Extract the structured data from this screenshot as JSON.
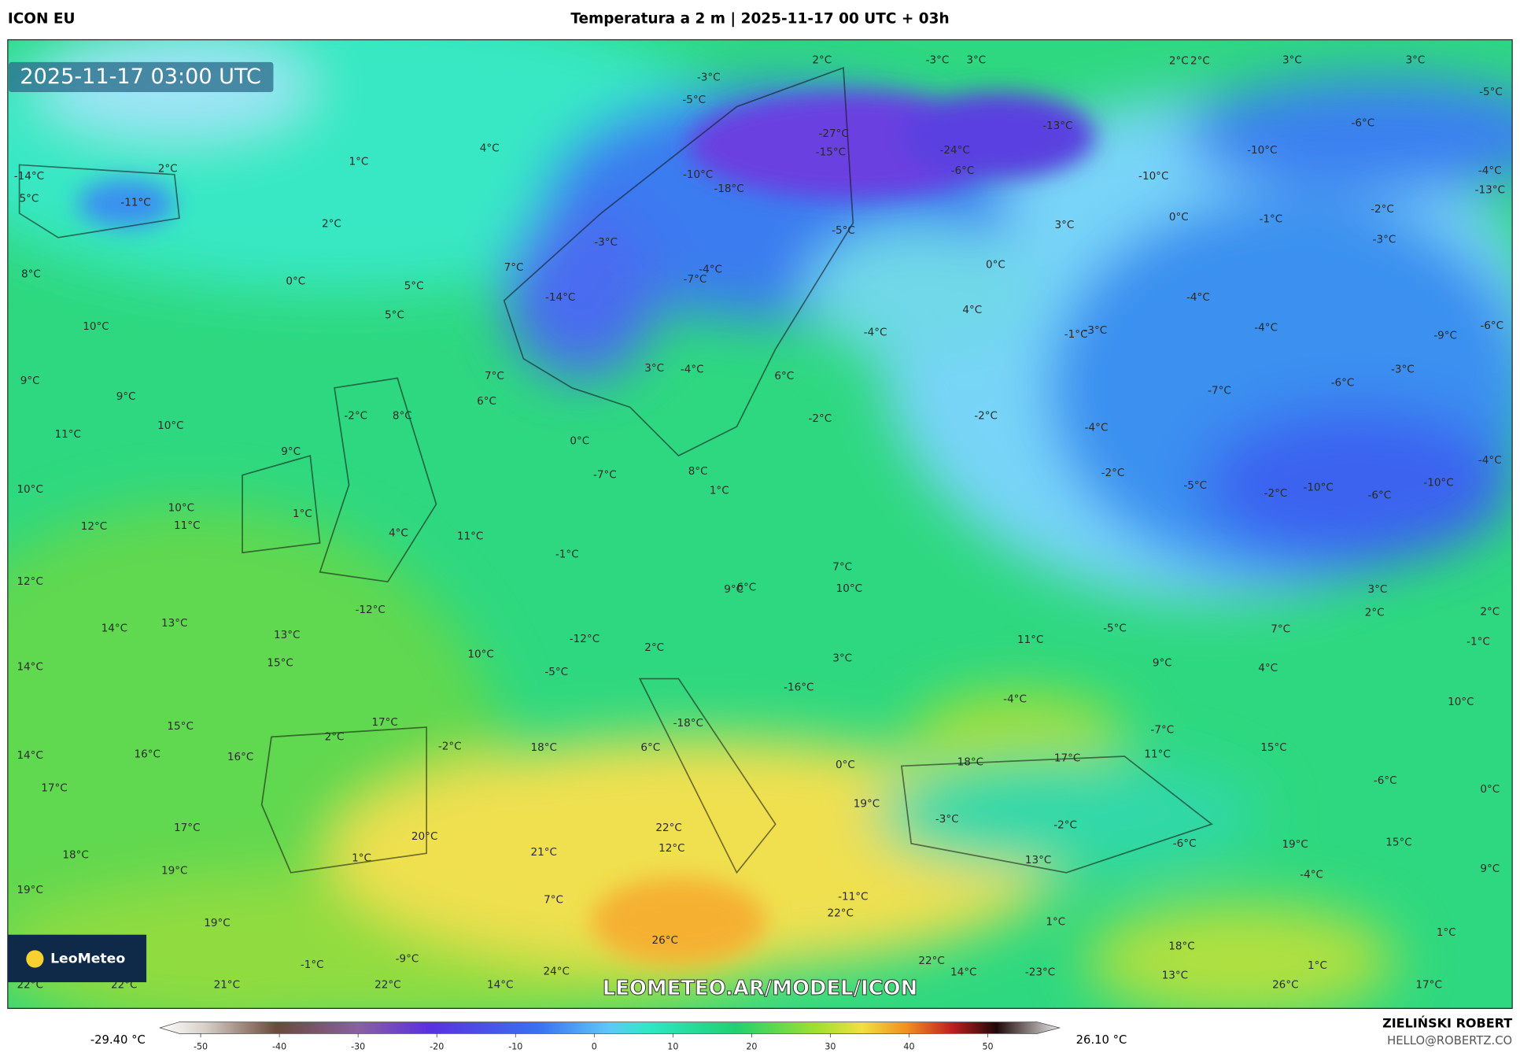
{
  "header": {
    "model": "ICON EU",
    "title": "Temperatura a 2 m | 2025-11-17 00 UTC + 03h"
  },
  "map": {
    "timestamp": "2025-11-17 03:00 UTC",
    "logo": "LeoMeteo",
    "watermark": "LEOMETEO.AR/MODEL/ICON",
    "labels": [
      "2°C",
      "-3°C",
      "3°C",
      "2°C",
      "2°C",
      "3°C",
      "3°C",
      "-5°C",
      "-3°C",
      "-5°C",
      "-27°C",
      "-15°C",
      "-13°C",
      "-24°C",
      "-6°C",
      "-6°C",
      "-10°C",
      "-10°C",
      "-4°C",
      "-13°C",
      "-10°C",
      "-18°C",
      "-11°C",
      "-14°C",
      "2°C",
      "5°C",
      "1°C",
      "4°C",
      "2°C",
      "-5°C",
      "3°C",
      "0°C",
      "-1°C",
      "-2°C",
      "-3°C",
      "-3°C",
      "7°C",
      "-4°C",
      "-7°C",
      "0°C",
      "8°C",
      "0°C",
      "5°C",
      "-14°C",
      "-4°C",
      "5°C",
      "4°C",
      "-4°C",
      "-6°C",
      "10°C",
      "-1°C",
      "-3°C",
      "-4°C",
      "-9°C",
      "-3°C",
      "3°C",
      "-4°C",
      "6°C",
      "7°C",
      "-6°C",
      "9°C",
      "-7°C",
      "9°C",
      "6°C",
      "-2°C",
      "8°C",
      "-2°C",
      "-2°C",
      "-4°C",
      "10°C",
      "11°C",
      "0°C",
      "9°C",
      "-7°C",
      "8°C",
      "-2°C",
      "-5°C",
      "-2°C",
      "-10°C",
      "-6°C",
      "-10°C",
      "-4°C",
      "1°C",
      "10°C",
      "10°C",
      "1°C",
      "11°C",
      "12°C",
      "4°C",
      "11°C",
      "-1°C",
      "7°C",
      "12°C",
      "9°C",
      "6°C",
      "10°C",
      "3°C",
      "2°C",
      "2°C",
      "-12°C",
      "14°C",
      "13°C",
      "7°C",
      "-5°C",
      "13°C",
      "-12°C",
      "11°C",
      "-1°C",
      "2°C",
      "10°C",
      "15°C",
      "9°C",
      "14°C",
      "3°C",
      "-5°C",
      "4°C",
      "-16°C",
      "-4°C",
      "10°C",
      "17°C",
      "15°C",
      "-18°C",
      "-7°C",
      "2°C",
      "-2°C",
      "18°C",
      "6°C",
      "15°C",
      "14°C",
      "16°C",
      "16°C",
      "18°C",
      "17°C",
      "11°C",
      "0°C",
      "-6°C",
      "17°C",
      "0°C",
      "19°C",
      "-3°C",
      "-2°C",
      "17°C",
      "22°C",
      "20°C",
      "19°C",
      "-6°C",
      "15°C",
      "12°C",
      "18°C",
      "21°C",
      "1°C",
      "13°C",
      "19°C",
      "9°C",
      "-4°C",
      "19°C",
      "-11°C",
      "7°C",
      "22°C",
      "1°C",
      "19°C",
      "1°C",
      "26°C",
      "18°C",
      "-9°C",
      "22°C",
      "-1°C",
      "1°C",
      "24°C",
      "14°C",
      "13°C",
      "-23°C",
      "22°C",
      "22°C",
      "21°C",
      "22°C",
      "14°C",
      "26°C",
      "17°C"
    ]
  },
  "colorbar": {
    "min_label": "-29.40 °C",
    "max_label": "26.10 °C",
    "ticks": [
      -50,
      -40,
      -30,
      -20,
      -10,
      0,
      10,
      20,
      30,
      40,
      50
    ]
  },
  "footer": {
    "author": "ZIELIŃSKI ROBERT",
    "email": "HELLO@ROBERTZ.CO"
  }
}
